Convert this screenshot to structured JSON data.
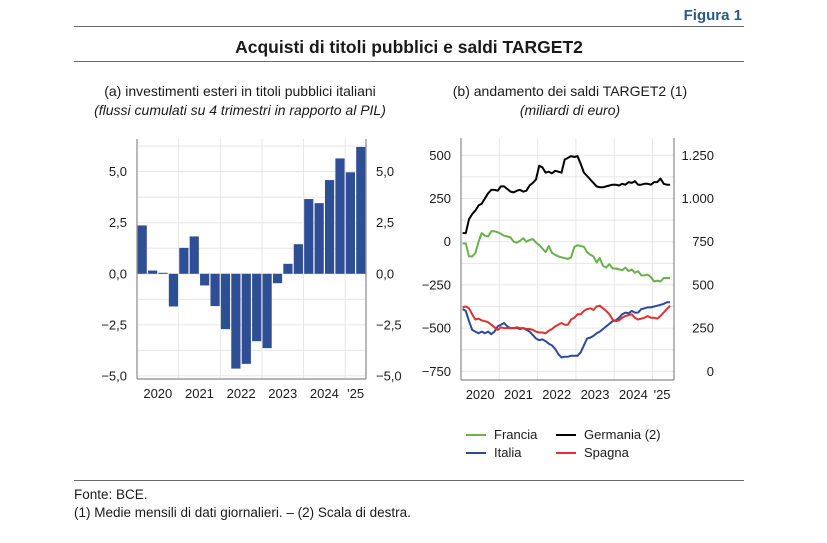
{
  "figure": {
    "label": "Figura 1",
    "title": "Acquisti di titoli pubblici e saldi TARGET2",
    "footnotes": {
      "source": "Fonte: BCE.",
      "notes": "(1) Medie mensili di dati giornalieri. – (2) Scala di destra."
    }
  },
  "chart_data": [
    {
      "id": "a",
      "type": "bar",
      "title": "(a) investimenti esteri in titoli pubblici italiani",
      "subtitle": "(flussi cumulati su 4 trimestri in rapporto al PIL)",
      "xlabel": "",
      "ylabel": "",
      "frequency": "quarterly",
      "categories": [
        "2020Q1",
        "2020Q2",
        "2020Q3",
        "2020Q4",
        "2021Q1",
        "2021Q2",
        "2021Q3",
        "2021Q4",
        "2022Q1",
        "2022Q2",
        "2022Q3",
        "2022Q4",
        "2023Q1",
        "2023Q2",
        "2023Q3",
        "2023Q4",
        "2024Q1",
        "2024Q2",
        "2024Q3",
        "2024Q4",
        "2025Q1",
        "2025Q2"
      ],
      "values": [
        2.37,
        0.16,
        0.05,
        -1.6,
        1.27,
        1.83,
        -0.57,
        -1.58,
        -2.71,
        -4.64,
        -4.41,
        -3.3,
        -3.64,
        -0.46,
        0.49,
        1.45,
        3.66,
        3.46,
        4.59,
        5.65,
        4.97,
        6.21
      ],
      "color": "#2e4f96",
      "ylim": [
        -5.15,
        6.6
      ],
      "yticks": [
        -5.0,
        -2.5,
        0.0,
        2.5,
        5.0
      ],
      "ytick_labels": [
        "−5,0",
        "−2,5",
        "0,0",
        "2,5",
        "5,0"
      ],
      "ygrid_step": 1.25,
      "xtick_labels": [
        "2020",
        "2021",
        "2022",
        "2023",
        "2024",
        "'25"
      ],
      "grid": true,
      "dual_axis_labels": true
    },
    {
      "id": "b",
      "type": "line",
      "title": "(b) andamento dei saldi TARGET2 (1)",
      "subtitle": "(miliardi di euro)",
      "xlabel": "",
      "ylabel": "",
      "frequency": "monthly",
      "x_start": "2020-01",
      "x_end": "2025-06",
      "ylim_left": [
        -800,
        600
      ],
      "yticks_left": [
        -750,
        -500,
        -250,
        0,
        250,
        500
      ],
      "ytick_labels_left": [
        "−750",
        "−500",
        "−250",
        "0",
        "250",
        "500"
      ],
      "ylim_right": [
        -50,
        1350
      ],
      "yticks_right": [
        0,
        250,
        500,
        750,
        1000,
        1250
      ],
      "ytick_labels_right": [
        "0",
        "250",
        "500",
        "750",
        "1.000",
        "1.250"
      ],
      "xtick_labels": [
        "2020",
        "2021",
        "2022",
        "2023",
        "2024",
        "'25"
      ],
      "grid": true,
      "legend_position": "bottom",
      "series": [
        {
          "name": "Francia",
          "axis": "left",
          "color": "#6ab04c",
          "values": [
            -10,
            -10,
            -85,
            -85,
            -65,
            0,
            50,
            35,
            30,
            60,
            60,
            55,
            45,
            35,
            30,
            25,
            0,
            -5,
            5,
            20,
            0,
            10,
            15,
            -5,
            -20,
            -40,
            -60,
            -25,
            -65,
            -75,
            -85,
            -90,
            -95,
            -100,
            -90,
            -30,
            -20,
            -25,
            -30,
            -60,
            -75,
            -85,
            -120,
            -95,
            -140,
            -150,
            -130,
            -155,
            -155,
            -160,
            -165,
            -150,
            -170,
            -160,
            -180,
            -170,
            -195,
            -195,
            -190,
            -205,
            -230,
            -225,
            -230,
            -210,
            -210,
            -210
          ]
        },
        {
          "name": "Germania (2)",
          "axis": "right",
          "color": "#000000",
          "values": [
            800,
            800,
            880,
            910,
            930,
            960,
            970,
            1000,
            1030,
            1050,
            1050,
            1045,
            1070,
            1070,
            1055,
            1040,
            1035,
            1045,
            1050,
            1040,
            1045,
            1075,
            1090,
            1110,
            1190,
            1180,
            1150,
            1155,
            1145,
            1160,
            1155,
            1150,
            1225,
            1235,
            1245,
            1240,
            1245,
            1200,
            1150,
            1130,
            1110,
            1090,
            1070,
            1065,
            1065,
            1070,
            1075,
            1080,
            1080,
            1075,
            1085,
            1080,
            1095,
            1090,
            1100,
            1080,
            1080,
            1085,
            1085,
            1080,
            1095,
            1095,
            1115,
            1085,
            1080,
            1080
          ]
        },
        {
          "name": "Italia",
          "axis": "left",
          "color": "#2a4a9a",
          "values": [
            -390,
            -400,
            -460,
            -510,
            -520,
            -530,
            -520,
            -530,
            -520,
            -535,
            -520,
            -490,
            -480,
            -470,
            -490,
            -500,
            -500,
            -500,
            -505,
            -500,
            -510,
            -520,
            -540,
            -560,
            -570,
            -565,
            -575,
            -590,
            -600,
            -620,
            -650,
            -670,
            -665,
            -665,
            -660,
            -660,
            -660,
            -640,
            -600,
            -560,
            -555,
            -545,
            -530,
            -520,
            -505,
            -490,
            -475,
            -460,
            -455,
            -440,
            -420,
            -410,
            -415,
            -400,
            -410,
            -410,
            -390,
            -385,
            -380,
            -380,
            -375,
            -370,
            -365,
            -360,
            -350,
            -350
          ]
        },
        {
          "name": "Spagna",
          "axis": "left",
          "color": "#e03030",
          "values": [
            -380,
            -375,
            -385,
            -420,
            -450,
            -445,
            -455,
            -460,
            -465,
            -480,
            -495,
            -510,
            -495,
            -500,
            -500,
            -500,
            -500,
            -495,
            -500,
            -500,
            -505,
            -505,
            -510,
            -520,
            -525,
            -525,
            -530,
            -515,
            -505,
            -490,
            -480,
            -470,
            -480,
            -480,
            -450,
            -440,
            -420,
            -420,
            -400,
            -390,
            -385,
            -395,
            -375,
            -370,
            -385,
            -400,
            -420,
            -450,
            -460,
            -455,
            -440,
            -430,
            -425,
            -420,
            -440,
            -450,
            -445,
            -440,
            -430,
            -440,
            -440,
            -445,
            -430,
            -410,
            -390,
            -370
          ]
        }
      ]
    }
  ]
}
